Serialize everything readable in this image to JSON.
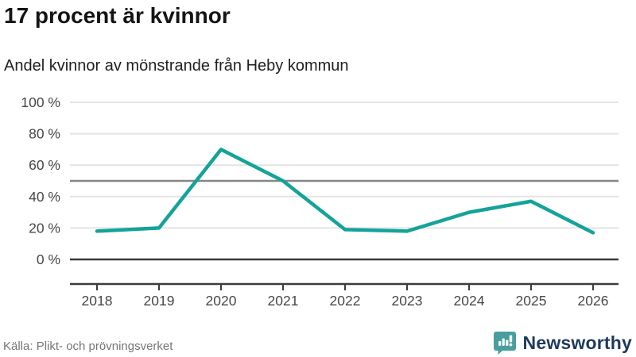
{
  "header": {
    "title": "17 procent är kvinnor",
    "subtitle": "Andel kvinnor av mönstrande från Heby kommun"
  },
  "chart_data": {
    "type": "line",
    "title": "17 procent är kvinnor",
    "subtitle": "Andel kvinnor av mönstrande från Heby kommun",
    "categories": [
      "2018",
      "2019",
      "2020",
      "2021",
      "2022",
      "2023",
      "2024",
      "2025",
      "2026"
    ],
    "series": [
      {
        "name": "Andel kvinnor av mönstrande",
        "values": [
          18,
          20,
          70,
          50,
          19,
          18,
          30,
          37,
          17
        ]
      }
    ],
    "unit": "%",
    "ylim": [
      0,
      100
    ],
    "yticks": [
      0,
      20,
      40,
      60,
      80,
      100
    ],
    "ytick_label_suffix": " %",
    "reference_line_y": 50,
    "grid": "horizontal",
    "legend": "none",
    "colors": {
      "line": "#14a39a",
      "gridline": "#e4e4e4",
      "reference_line": "#858585",
      "axis_line": "#3b3b3b",
      "tick_label": "#474747"
    }
  },
  "footer": {
    "source": "Källa: Plikt- och prövningsverket",
    "brand": "Newsworthy",
    "brand_icon_color": "#489e9e",
    "brand_text_color": "#1f3a5c"
  }
}
